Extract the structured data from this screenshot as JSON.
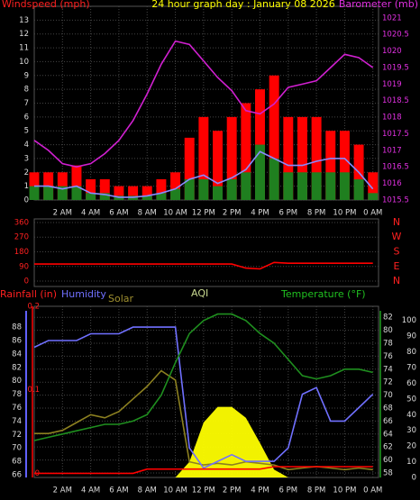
{
  "chart_data": [
    {
      "type": "combo",
      "title": "24 hour graph day : January 08 2026",
      "ylabel": "Windspeed (mph)",
      "y2label": "Barometer (mb)",
      "x": [
        0,
        1,
        2,
        3,
        4,
        5,
        6,
        7,
        8,
        9,
        10,
        11,
        12,
        13,
        14,
        15,
        16,
        17,
        18,
        19,
        20,
        21,
        22,
        23,
        24
      ],
      "xlim": [
        0,
        24.4
      ],
      "xticks": [
        {
          "value": 2,
          "label": "2 AM"
        },
        {
          "value": 4,
          "label": "4 AM"
        },
        {
          "value": 6,
          "label": "6 AM"
        },
        {
          "value": 8,
          "label": "8 AM"
        },
        {
          "value": 10,
          "label": "10 AM"
        },
        {
          "value": 12,
          "label": "12 PM"
        },
        {
          "value": 14,
          "label": "2 PM"
        },
        {
          "value": 16,
          "label": "4 PM"
        },
        {
          "value": 18,
          "label": "6 PM"
        },
        {
          "value": 20,
          "label": "8 PM"
        },
        {
          "value": 22,
          "label": "10 PM"
        },
        {
          "value": 24,
          "label": "0 AM"
        }
      ],
      "ylim": [
        0,
        14
      ],
      "yticks": [
        0,
        1,
        2,
        3,
        4,
        5,
        6,
        7,
        8,
        9,
        10,
        11,
        12,
        13
      ],
      "y2lim": [
        1015.5,
        1021.35
      ],
      "y2ticks": [
        1015.5,
        1016,
        1016.5,
        1017,
        1017.5,
        1018,
        1018.5,
        1019,
        1019.5,
        1020,
        1020.5,
        1021
      ],
      "grid": true,
      "series": [
        {
          "kind": "bar",
          "color": "#ff0000",
          "values": [
            2,
            2,
            2,
            2.5,
            1.5,
            1.5,
            1,
            1,
            1,
            1.5,
            2,
            4.5,
            6,
            5,
            6,
            7,
            8,
            9,
            6,
            6,
            6,
            5,
            5,
            4,
            2
          ]
        },
        {
          "kind": "bar",
          "color": "#1f7f1f",
          "values": [
            1,
            1,
            1,
            1,
            0.5,
            0.5,
            0.3,
            0.3,
            0.3,
            0.5,
            0.8,
            1.5,
            1.5,
            1,
            1.5,
            2,
            4,
            3,
            2,
            2,
            2,
            2,
            2,
            1.5,
            0.5
          ]
        },
        {
          "kind": "line",
          "color": "#8a8aff",
          "values": [
            1,
            1,
            0.8,
            1,
            0.5,
            0.4,
            0.2,
            0.2,
            0.3,
            0.5,
            0.8,
            1.5,
            1.8,
            1.2,
            1.6,
            2.2,
            3.5,
            3,
            2.5,
            2.5,
            2.8,
            3,
            3,
            2,
            0.8
          ]
        },
        {
          "kind": "line",
          "color": "#d020d0",
          "axis": "y2",
          "values": [
            1017.3,
            1017,
            1016.6,
            1016.5,
            1016.6,
            1016.9,
            1017.3,
            1017.9,
            1018.7,
            1019.6,
            1020.3,
            1020.2,
            1019.7,
            1019.2,
            1018.8,
            1018.2,
            1018.1,
            1018.4,
            1018.9,
            1019,
            1019.1,
            1019.5,
            1019.9,
            1019.8,
            1019.5
          ]
        }
      ]
    },
    {
      "type": "line",
      "x": [
        0,
        1,
        2,
        3,
        4,
        5,
        6,
        7,
        8,
        9,
        10,
        11,
        12,
        13,
        14,
        15,
        16,
        17,
        18,
        19,
        20,
        21,
        22,
        23,
        24
      ],
      "xlim": [
        0,
        24.4
      ],
      "ylim": [
        -33,
        382
      ],
      "yticks": [
        0,
        90,
        180,
        270,
        360
      ],
      "y2lim": [
        -33,
        382
      ],
      "y2ticks": [
        {
          "value": 360,
          "label": "N"
        },
        {
          "value": 270,
          "label": "W"
        },
        {
          "value": 180,
          "label": "S"
        },
        {
          "value": 90,
          "label": "E"
        },
        {
          "value": 0,
          "label": "N"
        }
      ],
      "grid": true,
      "series": [
        {
          "kind": "line",
          "color": "#ff0000",
          "values": [
            105,
            105,
            105,
            105,
            105,
            105,
            105,
            105,
            105,
            105,
            105,
            105,
            105,
            105,
            105,
            80,
            75,
            115,
            110,
            110,
            110,
            110,
            110,
            110,
            110
          ]
        }
      ]
    },
    {
      "type": "combo",
      "rain_label": "Rainfall (in)",
      "humidity_label": "Humidity",
      "solar_label": "Solar",
      "aqi_label": "AQI",
      "temp_label": "Temperature (°F)",
      "x": [
        0,
        1,
        2,
        3,
        4,
        5,
        6,
        7,
        8,
        9,
        10,
        11,
        12,
        13,
        14,
        15,
        16,
        17,
        18,
        19,
        20,
        21,
        22,
        23,
        24
      ],
      "xlim": [
        0,
        24.4
      ],
      "xticks": [
        {
          "value": 2,
          "label": "2 AM"
        },
        {
          "value": 4,
          "label": "4 AM"
        },
        {
          "value": 6,
          "label": "6 AM"
        },
        {
          "value": 8,
          "label": "8 AM"
        },
        {
          "value": 10,
          "label": "10 AM"
        },
        {
          "value": 12,
          "label": "12 PM"
        },
        {
          "value": 14,
          "label": "2 PM"
        },
        {
          "value": 16,
          "label": "4 PM"
        },
        {
          "value": 18,
          "label": "6 PM"
        },
        {
          "value": 20,
          "label": "8 PM"
        },
        {
          "value": 22,
          "label": "10 PM"
        },
        {
          "value": 24,
          "label": "0 AM"
        }
      ],
      "ylim": [
        65.6,
        91.1
      ],
      "yticks": [
        66,
        68,
        70,
        72,
        74,
        76,
        78,
        80,
        82,
        84,
        86,
        88
      ],
      "y2lim": [
        57.3,
        83.7
      ],
      "y2ticks": [
        58,
        60,
        62,
        64,
        66,
        68,
        70,
        72,
        74,
        76,
        78,
        80,
        82
      ],
      "y3lim": [
        0,
        109
      ],
      "y3ticks": [
        0,
        10,
        20,
        30,
        40,
        50,
        60,
        70,
        80,
        90,
        100
      ],
      "y4lim": [
        -0.005,
        0.2
      ],
      "y4ticks": [
        0,
        0.1,
        0.2
      ],
      "grid": true,
      "series": [
        {
          "kind": "area",
          "color": "#ffff00",
          "axis": "y3",
          "values": [
            0,
            0,
            0,
            0,
            0,
            0,
            0,
            0,
            0,
            0,
            0,
            10,
            35,
            45,
            45,
            38,
            22,
            5,
            0,
            0,
            0,
            0,
            0,
            0,
            0
          ]
        },
        {
          "kind": "line",
          "color": "#8c8020",
          "axis": "y3",
          "values": [
            28,
            28,
            30,
            35,
            40,
            38,
            42,
            50,
            58,
            68,
            62,
            10,
            8,
            9,
            8,
            10,
            9,
            8,
            5,
            6,
            7,
            6,
            5,
            6,
            5
          ]
        },
        {
          "kind": "line",
          "color": "#7070ff",
          "values": [
            85,
            86,
            86,
            86,
            87,
            87,
            87,
            88,
            88,
            88,
            88,
            70,
            67,
            68,
            69,
            68,
            68,
            68,
            70,
            78,
            79,
            74,
            74,
            76,
            78
          ]
        },
        {
          "kind": "line",
          "color": "#1f8f1f",
          "axis": "y2",
          "values": [
            63,
            63.5,
            64,
            64.5,
            65,
            65.5,
            65.5,
            66,
            67,
            70,
            75,
            79.5,
            81.5,
            82.5,
            82.5,
            81.5,
            79.5,
            78,
            75.5,
            73,
            72.5,
            73,
            74,
            74,
            73.5
          ]
        },
        {
          "kind": "line",
          "color": "#ff0000",
          "axis": "y4",
          "values": [
            0,
            0,
            0,
            0,
            0,
            0,
            0,
            0,
            0.005,
            0.005,
            0.005,
            0.005,
            0.005,
            0.005,
            0.005,
            0.005,
            0.005,
            0.008,
            0.008,
            0.008,
            0.008,
            0.008,
            0.008,
            0.008,
            0.008
          ]
        }
      ]
    }
  ]
}
